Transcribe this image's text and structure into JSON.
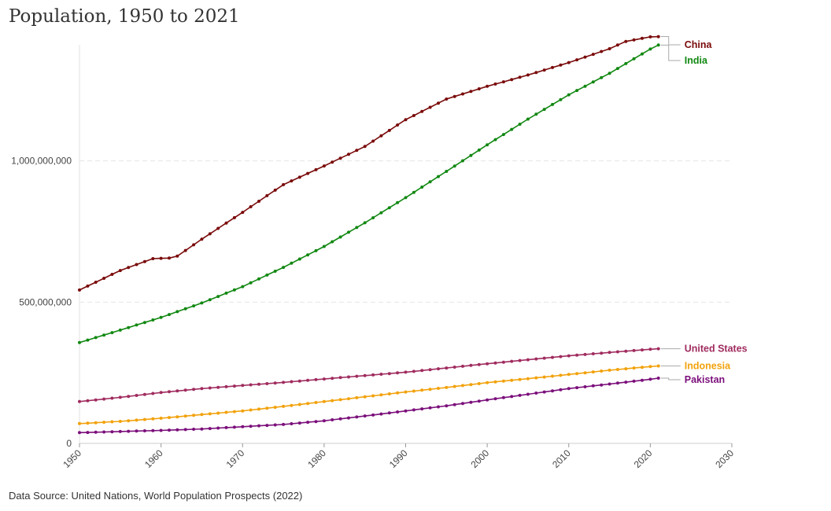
{
  "title": "Population, 1950 to 2021",
  "source": "Data Source: United Nations, World Population Prospects (2022)",
  "chart_data": {
    "type": "line",
    "title": "Population, 1950 to 2021",
    "xlabel": "",
    "ylabel": "",
    "xlim": [
      1950,
      2030
    ],
    "ylim": [
      0,
      1500000000
    ],
    "x_ticks": [
      1950,
      1960,
      1970,
      1980,
      1990,
      2000,
      2010,
      2020,
      2030
    ],
    "y_ticks": [
      0,
      500000000,
      1000000000
    ],
    "y_tick_labels": [
      "0",
      "500,000,000",
      "1,000,000,000"
    ],
    "grid": "horizontal",
    "legend": "right-end-labels",
    "series": [
      {
        "name": "China",
        "color": "#7a0a0a",
        "points": [
          [
            1950,
            543000000
          ],
          [
            1955,
            612000000
          ],
          [
            1959,
            654000000
          ],
          [
            1961,
            656000000
          ],
          [
            1962,
            663000000
          ],
          [
            1965,
            723000000
          ],
          [
            1970,
            818000000
          ],
          [
            1975,
            916000000
          ],
          [
            1980,
            982000000
          ],
          [
            1985,
            1051000000
          ],
          [
            1990,
            1146000000
          ],
          [
            1995,
            1219000000
          ],
          [
            2000,
            1264000000
          ],
          [
            2005,
            1304000000
          ],
          [
            2010,
            1348000000
          ],
          [
            2015,
            1397000000
          ],
          [
            2017,
            1423000000
          ],
          [
            2020,
            1439000000
          ],
          [
            2021,
            1440000000
          ]
        ]
      },
      {
        "name": "India",
        "color": "#118811",
        "points": [
          [
            1950,
            357000000
          ],
          [
            1955,
            401000000
          ],
          [
            1960,
            446000000
          ],
          [
            1965,
            497000000
          ],
          [
            1970,
            555000000
          ],
          [
            1975,
            623000000
          ],
          [
            1980,
            697000000
          ],
          [
            1985,
            781000000
          ],
          [
            1990,
            870000000
          ],
          [
            1995,
            963000000
          ],
          [
            2000,
            1057000000
          ],
          [
            2005,
            1148000000
          ],
          [
            2010,
            1234000000
          ],
          [
            2015,
            1310000000
          ],
          [
            2020,
            1396000000
          ],
          [
            2021,
            1410000000
          ]
        ]
      },
      {
        "name": "United States",
        "color": "#a02c5f",
        "points": [
          [
            1950,
            148000000
          ],
          [
            1955,
            163000000
          ],
          [
            1960,
            180000000
          ],
          [
            1965,
            194000000
          ],
          [
            1970,
            205000000
          ],
          [
            1975,
            216000000
          ],
          [
            1980,
            228000000
          ],
          [
            1985,
            240000000
          ],
          [
            1990,
            252000000
          ],
          [
            1995,
            267000000
          ],
          [
            2000,
            282000000
          ],
          [
            2005,
            296000000
          ],
          [
            2010,
            310000000
          ],
          [
            2015,
            322000000
          ],
          [
            2020,
            333000000
          ],
          [
            2021,
            335000000
          ]
        ]
      },
      {
        "name": "Indonesia",
        "color": "#f2a20c",
        "points": [
          [
            1950,
            70000000
          ],
          [
            1955,
            78000000
          ],
          [
            1960,
            89000000
          ],
          [
            1965,
            102000000
          ],
          [
            1970,
            115000000
          ],
          [
            1975,
            131000000
          ],
          [
            1980,
            148000000
          ],
          [
            1985,
            165000000
          ],
          [
            1990,
            182000000
          ],
          [
            1995,
            198000000
          ],
          [
            2000,
            215000000
          ],
          [
            2005,
            229000000
          ],
          [
            2010,
            244000000
          ],
          [
            2015,
            259000000
          ],
          [
            2020,
            272000000
          ],
          [
            2021,
            274000000
          ]
        ]
      },
      {
        "name": "Pakistan",
        "color": "#7b0f7b",
        "points": [
          [
            1950,
            38000000
          ],
          [
            1955,
            42000000
          ],
          [
            1960,
            46000000
          ],
          [
            1965,
            51000000
          ],
          [
            1970,
            59000000
          ],
          [
            1975,
            67000000
          ],
          [
            1980,
            80000000
          ],
          [
            1985,
            97000000
          ],
          [
            1990,
            115000000
          ],
          [
            1995,
            133000000
          ],
          [
            2000,
            154000000
          ],
          [
            2005,
            174000000
          ],
          [
            2010,
            194000000
          ],
          [
            2015,
            210000000
          ],
          [
            2020,
            227000000
          ],
          [
            2021,
            231000000
          ]
        ]
      }
    ]
  }
}
